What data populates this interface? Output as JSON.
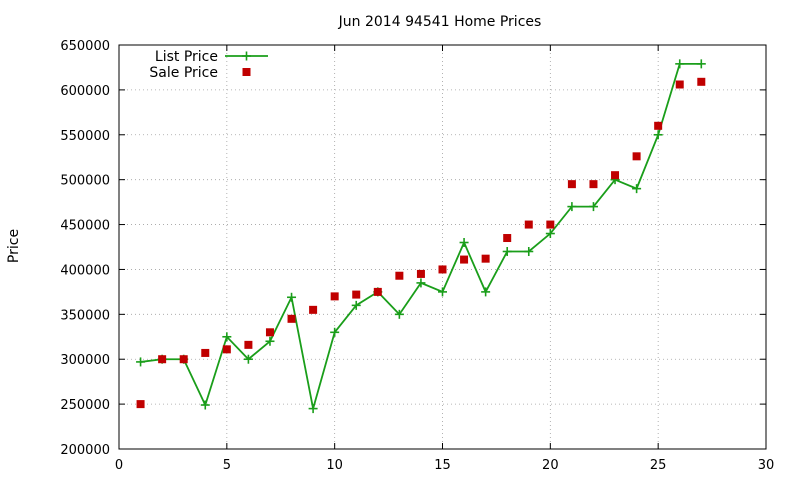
{
  "chart_data": {
    "type": "line",
    "title": "Jun 2014 94541 Home Prices",
    "xlabel": "",
    "ylabel": "Price",
    "xlim": [
      0,
      30
    ],
    "ylim": [
      200000,
      650000
    ],
    "xticks": [
      0,
      5,
      10,
      15,
      20,
      25,
      30
    ],
    "yticks": [
      200000,
      250000,
      300000,
      350000,
      400000,
      450000,
      500000,
      550000,
      600000,
      650000
    ],
    "grid": true,
    "legend_position": "top-left",
    "series": [
      {
        "name": "List Price",
        "style": "line-with-plus-markers",
        "color": "#1a9e1a",
        "points": [
          [
            1,
            297000
          ],
          [
            2,
            300000
          ],
          [
            3,
            300000
          ],
          [
            4,
            249000
          ],
          [
            5,
            325000
          ],
          [
            6,
            300000
          ],
          [
            7,
            320000
          ],
          [
            8,
            369000
          ],
          [
            9,
            245000
          ],
          [
            10,
            330000
          ],
          [
            11,
            360000
          ],
          [
            12,
            375000
          ],
          [
            13,
            350000
          ],
          [
            14,
            385000
          ],
          [
            15,
            375000
          ],
          [
            16,
            430000
          ],
          [
            17,
            375000
          ],
          [
            18,
            420000
          ],
          [
            19,
            420000
          ],
          [
            20,
            440000
          ],
          [
            21,
            470000
          ],
          [
            22,
            470000
          ],
          [
            23,
            500000
          ],
          [
            24,
            490000
          ],
          [
            25,
            550000
          ],
          [
            26,
            629000
          ],
          [
            27,
            629000
          ]
        ]
      },
      {
        "name": "Sale Price",
        "style": "square-markers",
        "color": "#c00000",
        "points": [
          [
            1,
            250000
          ],
          [
            2,
            300000
          ],
          [
            3,
            300000
          ],
          [
            4,
            307000
          ],
          [
            5,
            311000
          ],
          [
            6,
            316000
          ],
          [
            7,
            330000
          ],
          [
            8,
            345000
          ],
          [
            9,
            355000
          ],
          [
            10,
            370000
          ],
          [
            11,
            372000
          ],
          [
            12,
            375000
          ],
          [
            13,
            393000
          ],
          [
            14,
            395000
          ],
          [
            15,
            400000
          ],
          [
            16,
            411000
          ],
          [
            17,
            412000
          ],
          [
            18,
            435000
          ],
          [
            19,
            450000
          ],
          [
            20,
            450000
          ],
          [
            21,
            495000
          ],
          [
            22,
            495000
          ],
          [
            23,
            505000
          ],
          [
            24,
            526000
          ],
          [
            25,
            560000
          ],
          [
            26,
            606000
          ],
          [
            27,
            609000
          ]
        ]
      }
    ]
  }
}
